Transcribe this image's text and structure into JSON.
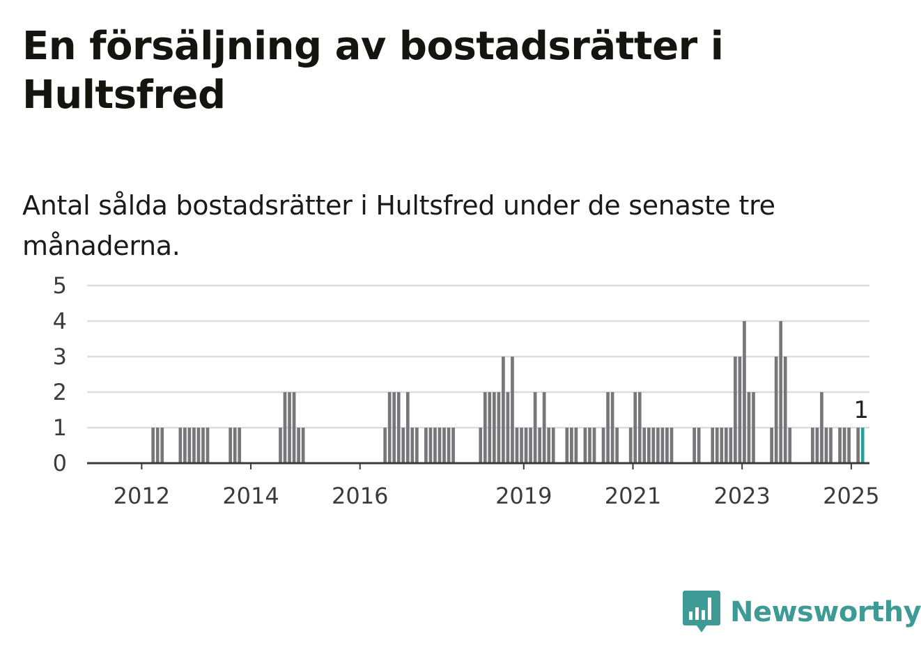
{
  "title": "En försäljning av bostadsrätter i Hultsfred",
  "subtitle": "Antal sålda bostadsrätter i Hultsfred under de senaste tre månaderna.",
  "brand": {
    "name": "Newsworthy",
    "color": "#3d9a95",
    "icon": "chat-bubble-bar-chart-icon"
  },
  "chart_data": {
    "type": "bar",
    "title": "En försäljning av bostadsrätter i Hultsfred",
    "subtitle": "Antal sålda bostadsrätter i Hultsfred under de senaste tre månaderna.",
    "xlabel": "",
    "ylabel": "",
    "ylim": [
      0,
      5
    ],
    "yticks": [
      0,
      1,
      2,
      3,
      4,
      5
    ],
    "xlim": [
      "2011-01",
      "2025-05"
    ],
    "xticks": [
      {
        "label": "2012",
        "date": "2012-01"
      },
      {
        "label": "2014",
        "date": "2014-01"
      },
      {
        "label": "2016",
        "date": "2016-01"
      },
      {
        "label": "2019",
        "date": "2019-01"
      },
      {
        "label": "2021",
        "date": "2021-01"
      },
      {
        "label": "2023",
        "date": "2023-01"
      },
      {
        "label": "2025",
        "date": "2025-01"
      }
    ],
    "grid": true,
    "bar_color": "#77767b",
    "highlight_color": "#2aa198",
    "highlight": {
      "date": "2025-03",
      "value": 1,
      "label": "1"
    },
    "points": [
      {
        "date": "2012-03",
        "value": 1
      },
      {
        "date": "2012-04",
        "value": 1
      },
      {
        "date": "2012-05",
        "value": 1
      },
      {
        "date": "2012-09",
        "value": 1
      },
      {
        "date": "2012-10",
        "value": 1
      },
      {
        "date": "2012-11",
        "value": 1
      },
      {
        "date": "2012-12",
        "value": 1
      },
      {
        "date": "2013-01",
        "value": 1
      },
      {
        "date": "2013-02",
        "value": 1
      },
      {
        "date": "2013-03",
        "value": 1
      },
      {
        "date": "2013-08",
        "value": 1
      },
      {
        "date": "2013-09",
        "value": 1
      },
      {
        "date": "2013-10",
        "value": 1
      },
      {
        "date": "2014-07",
        "value": 1
      },
      {
        "date": "2014-08",
        "value": 2
      },
      {
        "date": "2014-09",
        "value": 2
      },
      {
        "date": "2014-10",
        "value": 2
      },
      {
        "date": "2014-11",
        "value": 1
      },
      {
        "date": "2014-12",
        "value": 1
      },
      {
        "date": "2016-06",
        "value": 1
      },
      {
        "date": "2016-07",
        "value": 2
      },
      {
        "date": "2016-08",
        "value": 2
      },
      {
        "date": "2016-09",
        "value": 2
      },
      {
        "date": "2016-10",
        "value": 1
      },
      {
        "date": "2016-11",
        "value": 2
      },
      {
        "date": "2016-12",
        "value": 1
      },
      {
        "date": "2017-01",
        "value": 1
      },
      {
        "date": "2017-03",
        "value": 1
      },
      {
        "date": "2017-04",
        "value": 1
      },
      {
        "date": "2017-05",
        "value": 1
      },
      {
        "date": "2017-06",
        "value": 1
      },
      {
        "date": "2017-07",
        "value": 1
      },
      {
        "date": "2017-08",
        "value": 1
      },
      {
        "date": "2017-09",
        "value": 1
      },
      {
        "date": "2018-03",
        "value": 1
      },
      {
        "date": "2018-04",
        "value": 2
      },
      {
        "date": "2018-05",
        "value": 2
      },
      {
        "date": "2018-06",
        "value": 2
      },
      {
        "date": "2018-07",
        "value": 2
      },
      {
        "date": "2018-08",
        "value": 3
      },
      {
        "date": "2018-09",
        "value": 2
      },
      {
        "date": "2018-10",
        "value": 3
      },
      {
        "date": "2018-11",
        "value": 1
      },
      {
        "date": "2018-12",
        "value": 1
      },
      {
        "date": "2019-01",
        "value": 1
      },
      {
        "date": "2019-02",
        "value": 1
      },
      {
        "date": "2019-03",
        "value": 2
      },
      {
        "date": "2019-04",
        "value": 1
      },
      {
        "date": "2019-05",
        "value": 2
      },
      {
        "date": "2019-06",
        "value": 1
      },
      {
        "date": "2019-07",
        "value": 1
      },
      {
        "date": "2019-10",
        "value": 1
      },
      {
        "date": "2019-11",
        "value": 1
      },
      {
        "date": "2019-12",
        "value": 1
      },
      {
        "date": "2020-02",
        "value": 1
      },
      {
        "date": "2020-03",
        "value": 1
      },
      {
        "date": "2020-04",
        "value": 1
      },
      {
        "date": "2020-06",
        "value": 1
      },
      {
        "date": "2020-07",
        "value": 2
      },
      {
        "date": "2020-08",
        "value": 2
      },
      {
        "date": "2020-09",
        "value": 1
      },
      {
        "date": "2020-12",
        "value": 1
      },
      {
        "date": "2021-01",
        "value": 2
      },
      {
        "date": "2021-02",
        "value": 2
      },
      {
        "date": "2021-03",
        "value": 1
      },
      {
        "date": "2021-04",
        "value": 1
      },
      {
        "date": "2021-05",
        "value": 1
      },
      {
        "date": "2021-06",
        "value": 1
      },
      {
        "date": "2021-07",
        "value": 1
      },
      {
        "date": "2021-08",
        "value": 1
      },
      {
        "date": "2021-09",
        "value": 1
      },
      {
        "date": "2022-02",
        "value": 1
      },
      {
        "date": "2022-03",
        "value": 1
      },
      {
        "date": "2022-06",
        "value": 1
      },
      {
        "date": "2022-07",
        "value": 1
      },
      {
        "date": "2022-08",
        "value": 1
      },
      {
        "date": "2022-09",
        "value": 1
      },
      {
        "date": "2022-10",
        "value": 1
      },
      {
        "date": "2022-11",
        "value": 3
      },
      {
        "date": "2022-12",
        "value": 3
      },
      {
        "date": "2023-01",
        "value": 4
      },
      {
        "date": "2023-02",
        "value": 2
      },
      {
        "date": "2023-03",
        "value": 2
      },
      {
        "date": "2023-07",
        "value": 1
      },
      {
        "date": "2023-08",
        "value": 3
      },
      {
        "date": "2023-09",
        "value": 4
      },
      {
        "date": "2023-10",
        "value": 3
      },
      {
        "date": "2023-11",
        "value": 1
      },
      {
        "date": "2024-04",
        "value": 1
      },
      {
        "date": "2024-05",
        "value": 1
      },
      {
        "date": "2024-06",
        "value": 2
      },
      {
        "date": "2024-07",
        "value": 1
      },
      {
        "date": "2024-08",
        "value": 1
      },
      {
        "date": "2024-10",
        "value": 1
      },
      {
        "date": "2024-11",
        "value": 1
      },
      {
        "date": "2024-12",
        "value": 1
      },
      {
        "date": "2025-02",
        "value": 1
      },
      {
        "date": "2025-03",
        "value": 1
      }
    ]
  }
}
